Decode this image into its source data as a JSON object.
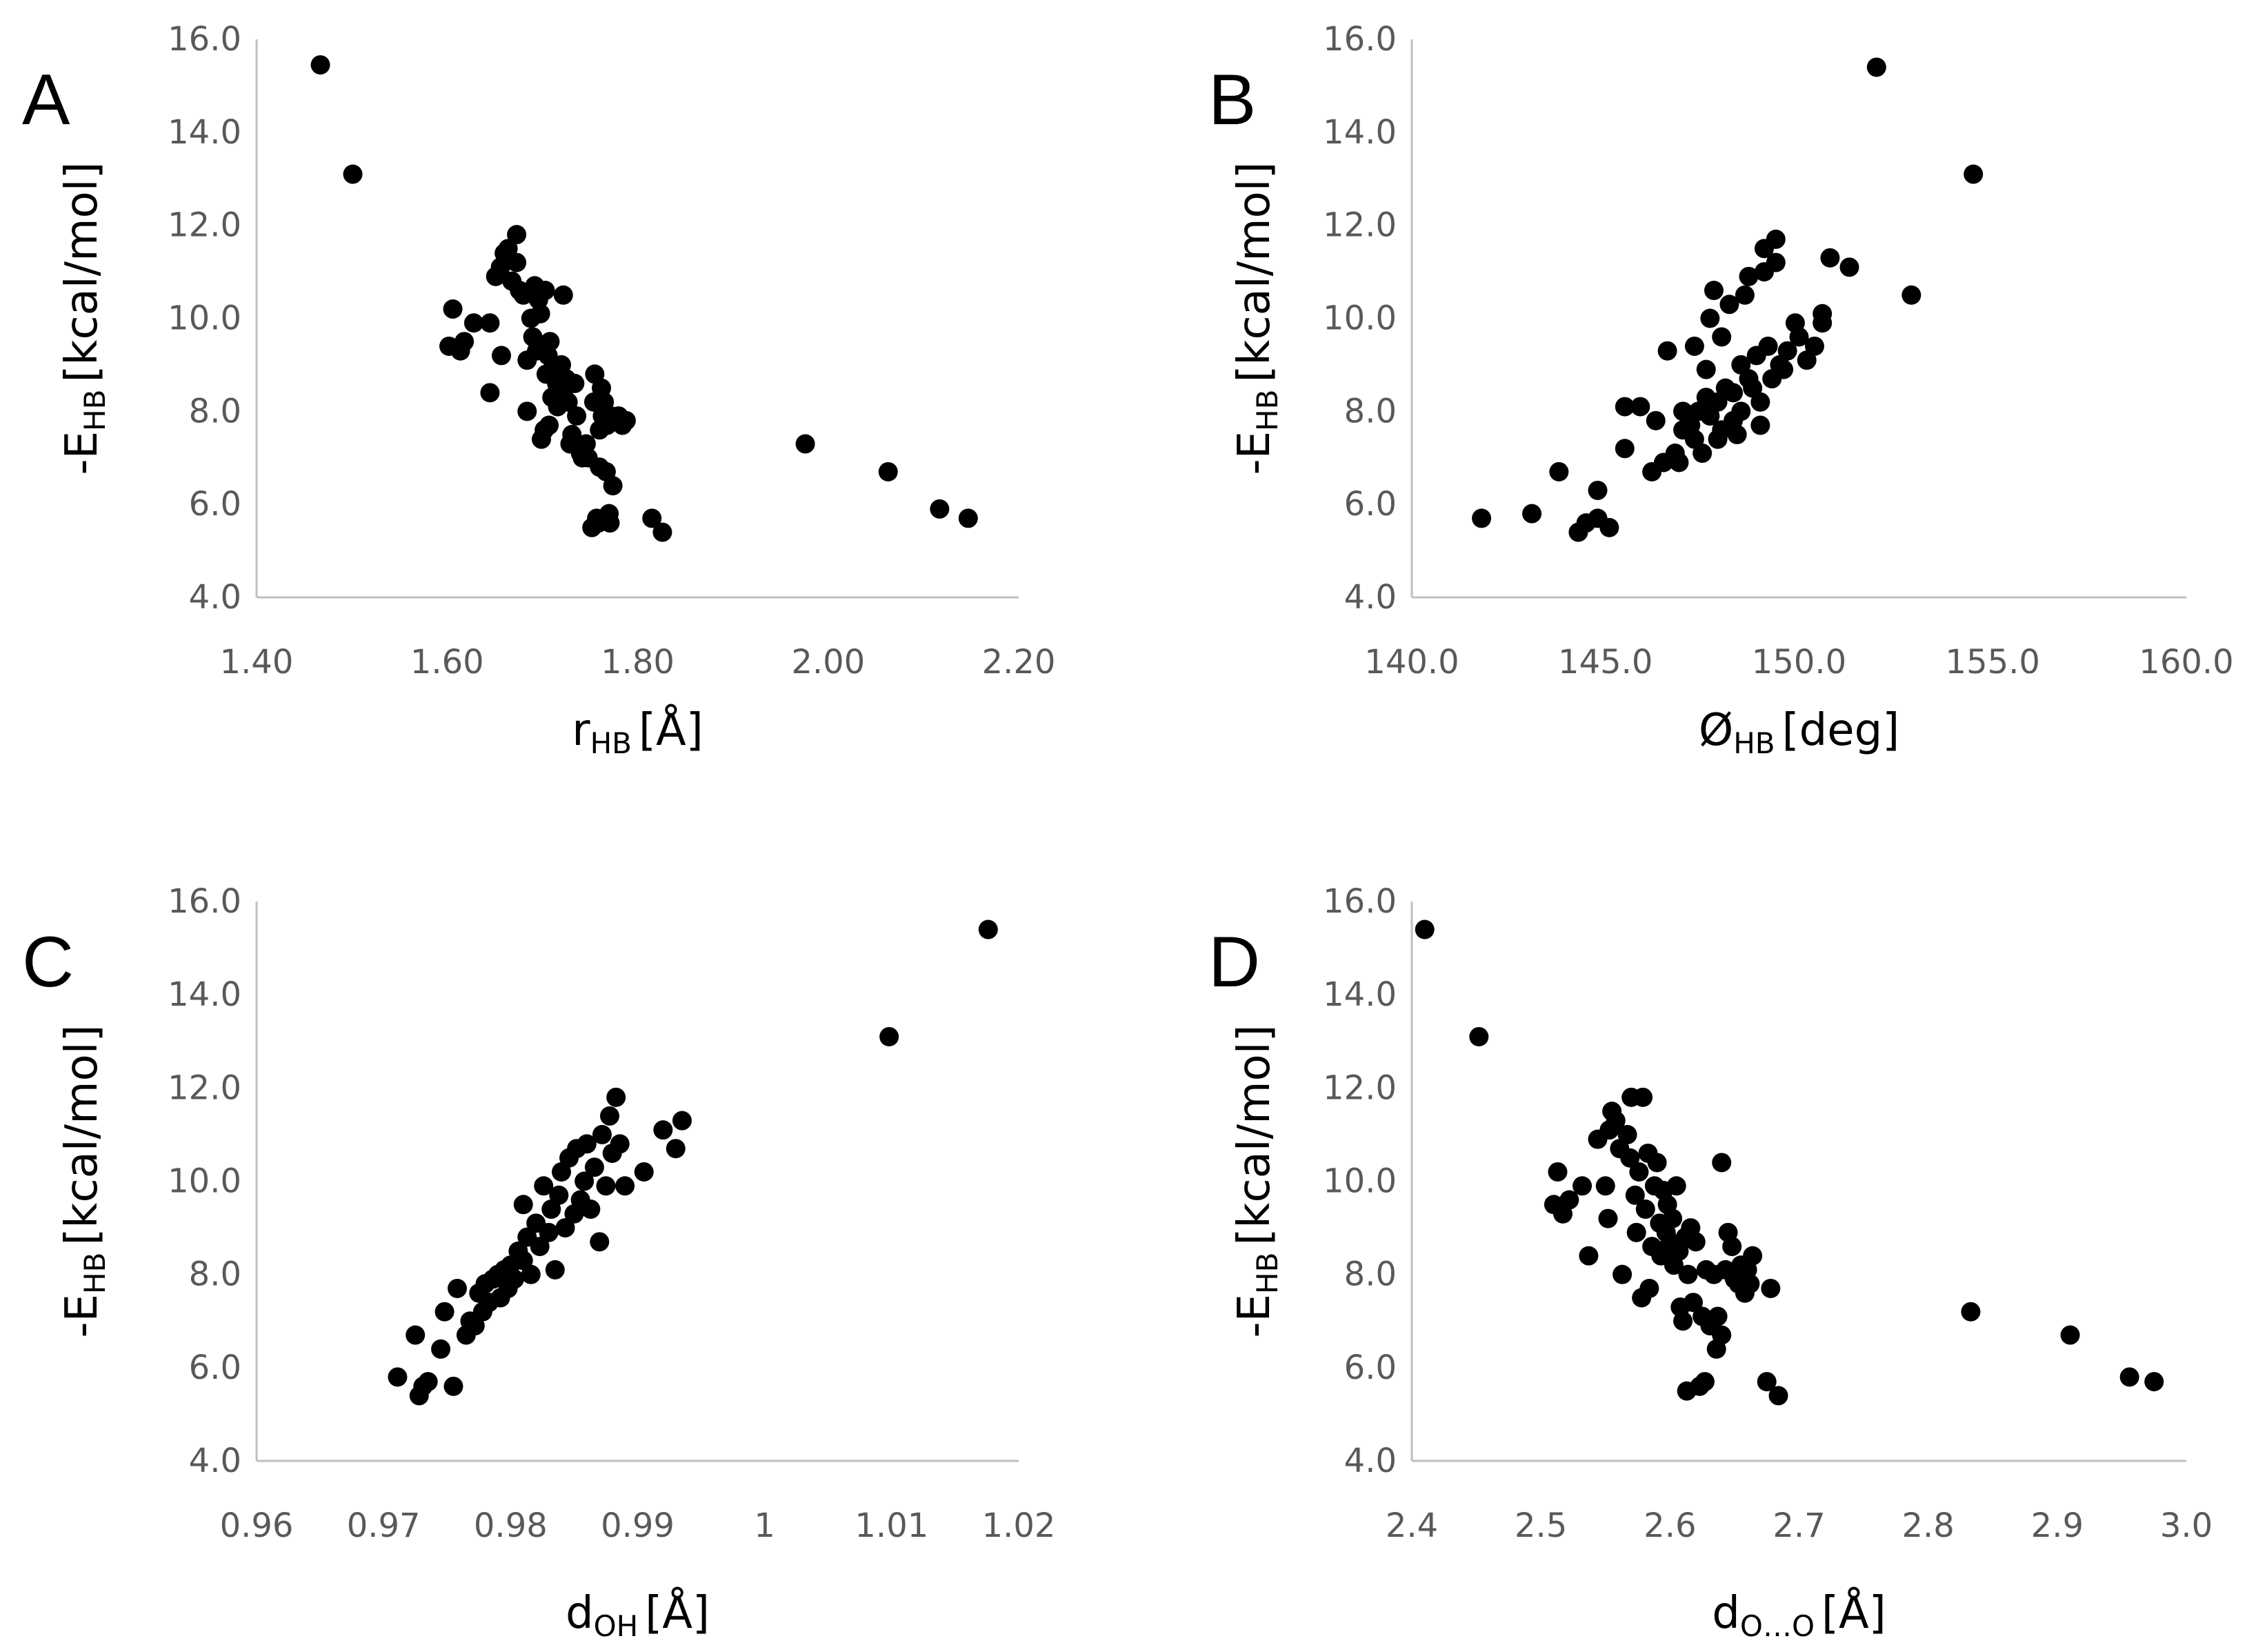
{
  "chart_data": [
    {
      "type": "scatter",
      "panel_label": "A",
      "xlabel": {
        "main": "r",
        "sub": "HB",
        "unit": "[Å]"
      },
      "ylabel": {
        "main": "-E",
        "sub": "HB",
        "unit": "[kcal/mol]"
      },
      "xlim": [
        1.4,
        2.2
      ],
      "ylim": [
        4.0,
        16.0
      ],
      "xticks": [
        "1.40",
        "1.60",
        "1.80",
        "2.00",
        "2.20"
      ],
      "yticks": [
        "4.0",
        "6.0",
        "8.0",
        "10.0",
        "12.0",
        "14.0",
        "16.0"
      ],
      "points": [
        [
          1.467,
          15.45
        ],
        [
          1.501,
          13.1
        ],
        [
          1.606,
          10.2
        ],
        [
          1.602,
          9.4
        ],
        [
          1.614,
          9.3
        ],
        [
          1.618,
          9.5
        ],
        [
          1.628,
          9.9
        ],
        [
          1.645,
          8.4
        ],
        [
          1.645,
          9.9
        ],
        [
          1.651,
          10.9
        ],
        [
          1.656,
          11.1
        ],
        [
          1.66,
          11.4
        ],
        [
          1.657,
          9.2
        ],
        [
          1.664,
          11.5
        ],
        [
          1.668,
          10.8
        ],
        [
          1.673,
          11.8
        ],
        [
          1.673,
          11.2
        ],
        [
          1.676,
          10.6
        ],
        [
          1.68,
          10.5
        ],
        [
          1.684,
          9.1
        ],
        [
          1.684,
          8.0
        ],
        [
          1.688,
          10.0
        ],
        [
          1.69,
          9.6
        ],
        [
          1.692,
          10.7
        ],
        [
          1.694,
          9.3
        ],
        [
          1.696,
          10.4
        ],
        [
          1.698,
          10.1
        ],
        [
          1.699,
          7.4
        ],
        [
          1.702,
          7.6
        ],
        [
          1.703,
          10.6
        ],
        [
          1.704,
          8.8
        ],
        [
          1.706,
          9.2
        ],
        [
          1.707,
          7.7
        ],
        [
          1.708,
          9.5
        ],
        [
          1.71,
          8.3
        ],
        [
          1.712,
          9.0
        ],
        [
          1.715,
          8.6
        ],
        [
          1.716,
          8.1
        ],
        [
          1.719,
          8.8
        ],
        [
          1.72,
          9.0
        ],
        [
          1.722,
          8.4
        ],
        [
          1.722,
          10.5
        ],
        [
          1.725,
          8.7
        ],
        [
          1.727,
          8.2
        ],
        [
          1.729,
          7.3
        ],
        [
          1.731,
          7.5
        ],
        [
          1.734,
          8.6
        ],
        [
          1.736,
          7.9
        ],
        [
          1.74,
          7.1
        ],
        [
          1.742,
          7.0
        ],
        [
          1.746,
          7.3
        ],
        [
          1.748,
          7.0
        ],
        [
          1.752,
          5.5
        ],
        [
          1.754,
          8.2
        ],
        [
          1.755,
          8.8
        ],
        [
          1.757,
          5.7
        ],
        [
          1.759,
          5.6
        ],
        [
          1.76,
          6.8
        ],
        [
          1.76,
          7.6
        ],
        [
          1.762,
          8.5
        ],
        [
          1.763,
          7.9
        ],
        [
          1.765,
          8.2
        ],
        [
          1.767,
          6.7
        ],
        [
          1.768,
          7.7
        ],
        [
          1.77,
          5.8
        ],
        [
          1.771,
          5.6
        ],
        [
          1.772,
          7.9
        ],
        [
          1.774,
          6.4
        ],
        [
          1.775,
          7.8
        ],
        [
          1.78,
          7.9
        ],
        [
          1.784,
          7.7
        ],
        [
          1.788,
          7.8
        ],
        [
          1.815,
          5.7
        ],
        [
          1.826,
          5.4
        ],
        [
          1.976,
          7.3
        ],
        [
          2.063,
          6.7
        ],
        [
          2.117,
          5.9
        ],
        [
          2.147,
          5.7
        ]
      ]
    },
    {
      "type": "scatter",
      "panel_label": "B",
      "xlabel": {
        "main": "Ø",
        "sub": "HB",
        "unit": "[deg]"
      },
      "ylabel": {
        "main": "-E",
        "sub": "HB",
        "unit": "[kcal/mol]"
      },
      "xlim": [
        140.0,
        160.0
      ],
      "ylim": [
        4.0,
        16.0
      ],
      "xticks": [
        "140.0",
        "145.0",
        "150.0",
        "155.0",
        "160.0"
      ],
      "yticks": [
        "4.0",
        "6.0",
        "8.0",
        "10.0",
        "12.0",
        "14.0",
        "16.0"
      ],
      "points": [
        [
          141.8,
          5.7
        ],
        [
          143.1,
          5.8
        ],
        [
          143.8,
          6.7
        ],
        [
          144.3,
          5.4
        ],
        [
          144.5,
          5.6
        ],
        [
          144.8,
          5.7
        ],
        [
          144.8,
          6.3
        ],
        [
          145.1,
          5.5
        ],
        [
          145.5,
          7.2
        ],
        [
          145.5,
          8.1
        ],
        [
          145.9,
          8.1
        ],
        [
          146.2,
          6.7
        ],
        [
          146.3,
          7.8
        ],
        [
          146.5,
          6.9
        ],
        [
          146.6,
          9.3
        ],
        [
          146.8,
          7.1
        ],
        [
          146.9,
          6.9
        ],
        [
          147.0,
          7.6
        ],
        [
          147.0,
          8.0
        ],
        [
          147.2,
          7.7
        ],
        [
          147.3,
          7.4
        ],
        [
          147.3,
          9.4
        ],
        [
          147.4,
          8.0
        ],
        [
          147.5,
          7.1
        ],
        [
          147.6,
          8.3
        ],
        [
          147.6,
          8.9
        ],
        [
          147.7,
          7.9
        ],
        [
          147.7,
          10.0
        ],
        [
          147.8,
          10.6
        ],
        [
          147.9,
          8.2
        ],
        [
          147.9,
          7.4
        ],
        [
          148.0,
          7.6
        ],
        [
          148.0,
          9.6
        ],
        [
          148.1,
          8.5
        ],
        [
          148.2,
          10.3
        ],
        [
          148.3,
          7.8
        ],
        [
          148.3,
          8.4
        ],
        [
          148.4,
          7.5
        ],
        [
          148.5,
          8.0
        ],
        [
          148.5,
          9.0
        ],
        [
          148.6,
          10.5
        ],
        [
          148.7,
          8.7
        ],
        [
          148.7,
          10.9
        ],
        [
          148.8,
          8.5
        ],
        [
          148.9,
          9.2
        ],
        [
          149.0,
          7.7
        ],
        [
          149.0,
          8.2
        ],
        [
          149.1,
          11.0
        ],
        [
          149.1,
          11.5
        ],
        [
          149.2,
          9.4
        ],
        [
          149.3,
          8.7
        ],
        [
          149.4,
          11.7
        ],
        [
          149.4,
          11.2
        ],
        [
          149.5,
          9.0
        ],
        [
          149.6,
          8.9
        ],
        [
          149.7,
          9.3
        ],
        [
          149.9,
          9.9
        ],
        [
          150.0,
          9.6
        ],
        [
          150.2,
          9.1
        ],
        [
          150.4,
          9.4
        ],
        [
          150.6,
          10.1
        ],
        [
          150.6,
          9.9
        ],
        [
          150.8,
          11.3
        ],
        [
          151.3,
          11.1
        ],
        [
          152.0,
          15.4
        ],
        [
          152.9,
          10.5
        ],
        [
          154.5,
          13.1
        ]
      ]
    },
    {
      "type": "scatter",
      "panel_label": "C",
      "xlabel": {
        "main": "d",
        "sub": "OH",
        "unit": "[Å]"
      },
      "ylabel": {
        "main": "-E",
        "sub": "HB",
        "unit": "[kcal/mol]"
      },
      "xlim": [
        0.96,
        1.02
      ],
      "ylim": [
        4.0,
        16.0
      ],
      "xticks": [
        "0.96",
        "0.97",
        "0.98",
        "0.99",
        "1",
        "1.01",
        "1.02"
      ],
      "yticks": [
        "4.0",
        "6.0",
        "8.0",
        "10.0",
        "12.0",
        "14.0",
        "16.0"
      ],
      "points": [
        [
          0.9711,
          5.8
        ],
        [
          0.9725,
          6.7
        ],
        [
          0.9728,
          5.4
        ],
        [
          0.9731,
          5.6
        ],
        [
          0.9735,
          5.7
        ],
        [
          0.9745,
          6.4
        ],
        [
          0.9748,
          7.2
        ],
        [
          0.9755,
          5.6
        ],
        [
          0.9758,
          7.7
        ],
        [
          0.9765,
          6.7
        ],
        [
          0.9768,
          7.0
        ],
        [
          0.9772,
          6.9
        ],
        [
          0.9775,
          7.6
        ],
        [
          0.9778,
          7.2
        ],
        [
          0.978,
          7.8
        ],
        [
          0.9783,
          7.4
        ],
        [
          0.9786,
          7.9
        ],
        [
          0.979,
          8.0
        ],
        [
          0.9792,
          7.5
        ],
        [
          0.9795,
          8.1
        ],
        [
          0.9798,
          7.7
        ],
        [
          0.98,
          8.2
        ],
        [
          0.9803,
          7.9
        ],
        [
          0.9806,
          8.5
        ],
        [
          0.981,
          9.5
        ],
        [
          0.981,
          8.3
        ],
        [
          0.9813,
          8.8
        ],
        [
          0.9816,
          8.0
        ],
        [
          0.982,
          9.1
        ],
        [
          0.9823,
          8.6
        ],
        [
          0.9826,
          9.9
        ],
        [
          0.983,
          8.9
        ],
        [
          0.9832,
          9.4
        ],
        [
          0.9835,
          8.1
        ],
        [
          0.9838,
          9.7
        ],
        [
          0.984,
          10.2
        ],
        [
          0.9843,
          9.0
        ],
        [
          0.9846,
          10.5
        ],
        [
          0.985,
          9.3
        ],
        [
          0.9852,
          10.7
        ],
        [
          0.9855,
          9.6
        ],
        [
          0.9858,
          10.0
        ],
        [
          0.986,
          10.8
        ],
        [
          0.9863,
          9.4
        ],
        [
          0.9866,
          10.3
        ],
        [
          0.987,
          8.7
        ],
        [
          0.9872,
          11.0
        ],
        [
          0.9875,
          9.9
        ],
        [
          0.9878,
          11.4
        ],
        [
          0.988,
          10.6
        ],
        [
          0.9883,
          11.8
        ],
        [
          0.9886,
          10.8
        ],
        [
          0.989,
          9.9
        ],
        [
          0.9905,
          10.2
        ],
        [
          0.992,
          11.1
        ],
        [
          0.993,
          10.7
        ],
        [
          0.9935,
          11.3
        ],
        [
          1.0098,
          13.1
        ],
        [
          1.0176,
          15.4
        ]
      ]
    },
    {
      "type": "scatter",
      "panel_label": "D",
      "xlabel": {
        "main": "d",
        "sub": "O…O",
        "unit": "[Å]"
      },
      "ylabel": {
        "main": "-E",
        "sub": "HB",
        "unit": "[kcal/mol]"
      },
      "xlim": [
        2.4,
        3.0
      ],
      "ylim": [
        4.0,
        16.0
      ],
      "xticks": [
        "2.4",
        "2.5",
        "2.6",
        "2.7",
        "2.8",
        "2.9",
        "3.0"
      ],
      "yticks": [
        "4.0",
        "6.0",
        "8.0",
        "10.0",
        "12.0",
        "14.0",
        "16.0"
      ],
      "points": [
        [
          2.41,
          15.4
        ],
        [
          2.452,
          13.1
        ],
        [
          2.51,
          9.5
        ],
        [
          2.513,
          10.2
        ],
        [
          2.517,
          9.3
        ],
        [
          2.522,
          9.6
        ],
        [
          2.532,
          9.9
        ],
        [
          2.537,
          8.4
        ],
        [
          2.544,
          10.9
        ],
        [
          2.55,
          9.9
        ],
        [
          2.553,
          11.1
        ],
        [
          2.555,
          11.5
        ],
        [
          2.552,
          9.2
        ],
        [
          2.558,
          11.3
        ],
        [
          2.561,
          10.7
        ],
        [
          2.563,
          8.0
        ],
        [
          2.567,
          11.0
        ],
        [
          2.569,
          10.5
        ],
        [
          2.57,
          11.8
        ],
        [
          2.573,
          9.7
        ],
        [
          2.574,
          8.9
        ],
        [
          2.576,
          10.2
        ],
        [
          2.578,
          7.5
        ],
        [
          2.579,
          11.8
        ],
        [
          2.581,
          9.4
        ],
        [
          2.583,
          10.6
        ],
        [
          2.584,
          7.7
        ],
        [
          2.586,
          8.6
        ],
        [
          2.588,
          9.9
        ],
        [
          2.59,
          10.4
        ],
        [
          2.592,
          9.1
        ],
        [
          2.593,
          8.4
        ],
        [
          2.595,
          9.8
        ],
        [
          2.597,
          8.9
        ],
        [
          2.598,
          9.5
        ],
        [
          2.6,
          8.7
        ],
        [
          2.602,
          9.2
        ],
        [
          2.603,
          8.2
        ],
        [
          2.605,
          9.9
        ],
        [
          2.607,
          8.5
        ],
        [
          2.608,
          7.3
        ],
        [
          2.61,
          7.0
        ],
        [
          2.612,
          8.8
        ],
        [
          2.613,
          5.5
        ],
        [
          2.614,
          8.0
        ],
        [
          2.616,
          9.0
        ],
        [
          2.618,
          7.4
        ],
        [
          2.62,
          8.7
        ],
        [
          2.623,
          5.6
        ],
        [
          2.625,
          7.1
        ],
        [
          2.627,
          5.7
        ],
        [
          2.628,
          8.1
        ],
        [
          2.631,
          6.9
        ],
        [
          2.634,
          8.0
        ],
        [
          2.636,
          6.4
        ],
        [
          2.637,
          7.1
        ],
        [
          2.64,
          6.7
        ],
        [
          2.64,
          10.4
        ],
        [
          2.643,
          8.1
        ],
        [
          2.645,
          8.9
        ],
        [
          2.648,
          8.6
        ],
        [
          2.65,
          7.9
        ],
        [
          2.653,
          7.8
        ],
        [
          2.655,
          8.2
        ],
        [
          2.658,
          7.6
        ],
        [
          2.66,
          8.1
        ],
        [
          2.662,
          7.8
        ],
        [
          2.664,
          8.4
        ],
        [
          2.675,
          5.7
        ],
        [
          2.678,
          7.7
        ],
        [
          2.684,
          5.4
        ],
        [
          2.833,
          7.2
        ],
        [
          2.91,
          6.7
        ],
        [
          2.956,
          5.8
        ],
        [
          2.975,
          5.7
        ]
      ]
    }
  ]
}
